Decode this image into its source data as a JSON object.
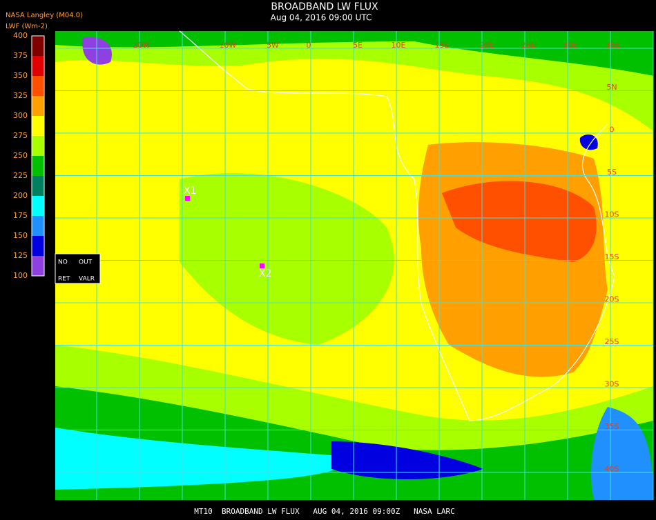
{
  "header": {
    "title": "BROADBAND LW FLUX",
    "subtitle": "Aug 04, 2016 09:00 UTC",
    "source": "NASA Langley (M04.0)",
    "units": "LWF (Wm-2)"
  },
  "colorbar": {
    "labels": [
      400,
      375,
      350,
      325,
      300,
      275,
      250,
      225,
      200,
      175,
      150,
      125,
      100
    ],
    "colors": [
      "#800000",
      "#e00000",
      "#ff5000",
      "#ffa000",
      "#ffff00",
      "#a8ff00",
      "#00c000",
      "#008060",
      "#00ffff",
      "#2090ff",
      "#0000e0",
      "#9040e0"
    ]
  },
  "map": {
    "lon_labels": [
      "20W",
      "10W",
      "5W",
      "0",
      "5E",
      "10E",
      "15E",
      "20E",
      "25E",
      "30E",
      "35E"
    ],
    "lat_labels": [
      "5N",
      "0",
      "5S",
      "10S",
      "15S",
      "20S",
      "25S",
      "30S",
      "35S",
      "40S"
    ],
    "markers": [
      "X1",
      "X2"
    ],
    "status": [
      "NO",
      "OUT",
      "RET",
      "VALR"
    ]
  },
  "footer": {
    "caption": "MT10  BROADBAND LW FLUX   AUG 04, 2016 09:00Z   NASA LARC"
  }
}
